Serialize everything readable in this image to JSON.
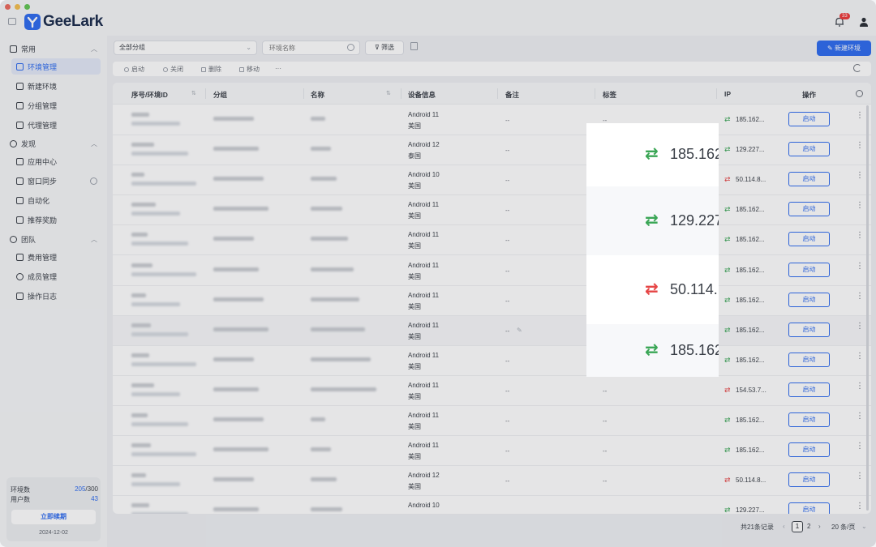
{
  "app": {
    "name": "GeeLark",
    "notification_count": "33"
  },
  "sidebar": {
    "groups": [
      {
        "label": "常用"
      },
      {
        "label": "发现"
      },
      {
        "label": "团队"
      }
    ],
    "items": [
      {
        "label": "环境管理"
      },
      {
        "label": "新建环境"
      },
      {
        "label": "分组管理"
      },
      {
        "label": "代理管理"
      },
      {
        "label": "应用中心"
      },
      {
        "label": "窗口同步"
      },
      {
        "label": "自动化"
      },
      {
        "label": "推荐奖励"
      },
      {
        "label": "费用管理"
      },
      {
        "label": "成员管理"
      },
      {
        "label": "操作日志"
      }
    ],
    "quota": {
      "env_label": "环境数",
      "env_used": "205",
      "env_total": "/300",
      "user_label": "用户数",
      "user_count": "43",
      "renew_label": "立即续期",
      "date": "2024-12-02"
    }
  },
  "toolbar": {
    "group_select": "全部分组",
    "search_placeholder": "环境名称",
    "filter_label": "筛选",
    "new_env_label": "新建环境",
    "actions": [
      "启动",
      "关闭",
      "删除",
      "移动",
      "···"
    ]
  },
  "table": {
    "headers": [
      "序号/环境ID",
      "分组",
      "名称",
      "设备信息",
      "备注",
      "标签",
      "IP",
      "操作"
    ],
    "button_label": "启动",
    "rows": [
      {
        "os": "Android 11",
        "region": "美国",
        "note": "--",
        "tag": "--",
        "ip": "185.162...",
        "ip_ok": true
      },
      {
        "os": "Android 12",
        "region": "泰国",
        "note": "--",
        "tag": "",
        "ip": "129.227...",
        "ip_ok": true
      },
      {
        "os": "Android 10",
        "region": "美国",
        "note": "--",
        "tag": "",
        "ip": "50.114.8...",
        "ip_ok": false
      },
      {
        "os": "Android 11",
        "region": "美国",
        "note": "--",
        "tag": "",
        "ip": "185.162...",
        "ip_ok": true
      },
      {
        "os": "Android 11",
        "region": "美国",
        "note": "--",
        "tag": "",
        "ip": "185.162...",
        "ip_ok": true
      },
      {
        "os": "Android 11",
        "region": "美国",
        "note": "--",
        "tag": "",
        "ip": "185.162...",
        "ip_ok": true
      },
      {
        "os": "Android 11",
        "region": "美国",
        "note": "--",
        "tag": "",
        "ip": "185.162...",
        "ip_ok": true
      },
      {
        "os": "Android 11",
        "region": "美国",
        "note": "--",
        "tag": "",
        "ip": "185.162...",
        "ip_ok": true
      },
      {
        "os": "Android 11",
        "region": "美国",
        "note": "--",
        "tag": "",
        "ip": "185.162...",
        "ip_ok": true
      },
      {
        "os": "Android 11",
        "region": "美国",
        "note": "--",
        "tag": "--",
        "ip": "154.53.7...",
        "ip_ok": false
      },
      {
        "os": "Android 11",
        "region": "美国",
        "note": "--",
        "tag": "--",
        "ip": "185.162...",
        "ip_ok": true
      },
      {
        "os": "Android 11",
        "region": "美国",
        "note": "--",
        "tag": "--",
        "ip": "185.162...",
        "ip_ok": true
      },
      {
        "os": "Android 12",
        "region": "美国",
        "note": "--",
        "tag": "--",
        "ip": "50.114.8...",
        "ip_ok": false
      },
      {
        "os": "Android 10",
        "region": "",
        "note": "",
        "tag": "",
        "ip": "129.227...",
        "ip_ok": true
      }
    ]
  },
  "zoom": {
    "rows": [
      {
        "ip": "185.162",
        "ok": true
      },
      {
        "ip": "129.227",
        "ok": true
      },
      {
        "ip": "50.114.",
        "ok": false
      },
      {
        "ip": "185.162",
        "ok": true
      }
    ]
  },
  "pagination": {
    "total": "共21条记录",
    "prev": "‹",
    "page1": "1",
    "page2": "2",
    "next": "›",
    "page_size": "20 条/页"
  },
  "colors": {
    "accent": "#2e6cf0",
    "ok": "#3aa655",
    "bad": "#e64545"
  }
}
